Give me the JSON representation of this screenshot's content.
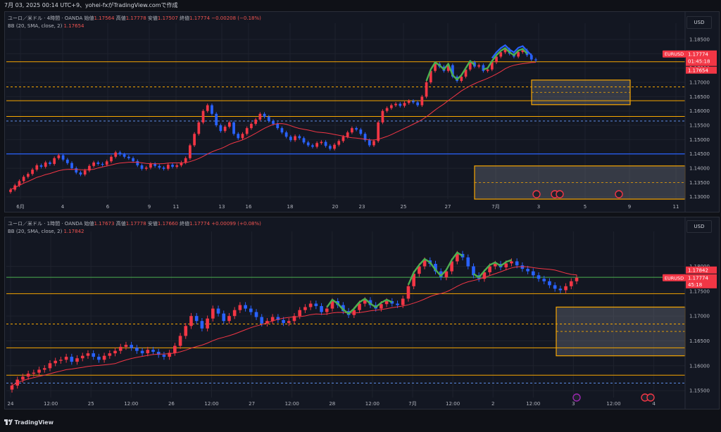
{
  "topbar": {
    "text": "7月 03, 2025 00:14 UTC+9、yohei-fxがTradingView.comで作成"
  },
  "footer": {
    "logo_icon": "tradingview-logo-icon",
    "brand": "TradingView"
  },
  "panel1": {
    "header": {
      "symbol": "ユーロ／米ドル · 4時間 · OANDA",
      "o_label": "始値",
      "o": "1.17564",
      "h_label": "高値",
      "h": "1.17778",
      "l_label": "安値",
      "l": "1.17507",
      "c_label": "終値",
      "c": "1.17774",
      "chg": "−0.00208 (−0.18%)"
    },
    "bb": {
      "label": "BB (20, SMA, close, 2)",
      "value": "1.17654"
    },
    "currency": "USD",
    "price_tag": {
      "symbol": "EURUSD",
      "price": "1.17774",
      "timer": "01:45:18",
      "bb_price": "1.17654"
    }
  },
  "panel2": {
    "header": {
      "symbol": "ユーロ／米ドル · 1時間 · OANDA",
      "o_label": "始値",
      "o": "1.17673",
      "h_label": "高値",
      "h": "1.17778",
      "l_label": "安値",
      "l": "1.17660",
      "c_label": "終値",
      "c": "1.17774",
      "chg": "+0.00099 (+0.08%)"
    },
    "bb": {
      "label": "BB (20, SMA, close, 2)",
      "value": "1.17842"
    },
    "currency": "USD",
    "price_tag": {
      "symbol": "EURUSD",
      "bb_price": "1.17842",
      "price": "1.17774",
      "timer": "45:18"
    }
  },
  "chart_data": [
    {
      "type": "candlestick",
      "title": "ユーロ／米ドル · 4時間 · OANDA",
      "x_tick_labels": [
        "6月",
        "4",
        "6",
        "9",
        "11",
        "13",
        "16",
        "18",
        "20",
        "23",
        "25",
        "27",
        "7月",
        "3",
        "5",
        "9",
        "11"
      ],
      "y_tick_labels": [
        "1.18500",
        "1.18000",
        "1.17500",
        "1.17000",
        "1.16500",
        "1.16000",
        "1.15500",
        "1.15000",
        "1.14500",
        "1.14000",
        "1.13500",
        "1.13000"
      ],
      "ylim": [
        1.1292,
        1.1882
      ],
      "closes": [
        1.1325,
        1.134,
        1.1355,
        1.137,
        1.138,
        1.1395,
        1.141,
        1.1405,
        1.142,
        1.1415,
        1.1435,
        1.1445,
        1.143,
        1.1418,
        1.14,
        1.1385,
        1.1378,
        1.1392,
        1.1408,
        1.142,
        1.1415,
        1.1412,
        1.1424,
        1.144,
        1.1455,
        1.1448,
        1.144,
        1.1435,
        1.1425,
        1.141,
        1.1398,
        1.1402,
        1.1415,
        1.1408,
        1.1402,
        1.1398,
        1.1412,
        1.1405,
        1.141,
        1.142,
        1.1435,
        1.148,
        1.152,
        1.156,
        1.16,
        1.162,
        1.159,
        1.155,
        1.153,
        1.1545,
        1.156,
        1.152,
        1.1505,
        1.152,
        1.154,
        1.1555,
        1.157,
        1.159,
        1.158,
        1.1565,
        1.1555,
        1.154,
        1.1525,
        1.151,
        1.1498,
        1.1512,
        1.1505,
        1.149,
        1.148,
        1.1475,
        1.1488,
        1.1492,
        1.1478,
        1.1468,
        1.1482,
        1.1495,
        1.151,
        1.1525,
        1.154,
        1.1535,
        1.152,
        1.1498,
        1.148,
        1.1495,
        1.156,
        1.16,
        1.161,
        1.162,
        1.1625,
        1.1618,
        1.1628,
        1.1635,
        1.163,
        1.162,
        1.165,
        1.17,
        1.174,
        1.1765,
        1.1755,
        1.174,
        1.176,
        1.172,
        1.1705,
        1.172,
        1.1745,
        1.177,
        1.1755,
        1.176,
        1.174,
        1.1745,
        1.177,
        1.179,
        1.1805,
        1.1815,
        1.18,
        1.179,
        1.1806,
        1.1812,
        1.1795,
        1.178,
        1.1777
      ],
      "bb_basis_value": "1.17654",
      "horizontal_levels": [
        1.1772,
        1.1684,
        1.1636,
        1.1581,
        1.1565,
        1.145
      ],
      "zones": [
        {
          "from": 1.1622,
          "to": 1.1708
        },
        {
          "from": 1.1292,
          "to": 1.1408
        }
      ],
      "event_icons": [
        "flash-event-icon",
        "us-flag-event-icon",
        "us-flag-event-icon",
        "globe-event-icon"
      ]
    },
    {
      "type": "candlestick",
      "title": "ユーロ／米ドル · 1時間 · OANDA",
      "x_tick_labels": [
        "24",
        "12:00",
        "25",
        "12:00",
        "26",
        "12:00",
        "27",
        "12:00",
        "28",
        "12:00",
        "7月",
        "12:00",
        "2",
        "12:00",
        "3",
        "12:00",
        "4"
      ],
      "y_tick_labels": [
        "1.18000",
        "1.17500",
        "1.17000",
        "1.16500",
        "1.16000",
        "1.15500"
      ],
      "ylim": [
        1.1536,
        1.1856
      ],
      "closes": [
        1.156,
        1.1572,
        1.1578,
        1.1584,
        1.1586,
        1.1592,
        1.1595,
        1.1605,
        1.161,
        1.1612,
        1.1618,
        1.1608,
        1.1615,
        1.162,
        1.1625,
        1.1618,
        1.1612,
        1.162,
        1.1625,
        1.163,
        1.1638,
        1.1642,
        1.1636,
        1.163,
        1.1625,
        1.1632,
        1.1628,
        1.1622,
        1.1618,
        1.1626,
        1.164,
        1.166,
        1.168,
        1.17,
        1.169,
        1.1675,
        1.1695,
        1.1715,
        1.1705,
        1.169,
        1.17,
        1.1712,
        1.1722,
        1.1715,
        1.1708,
        1.1698,
        1.1685,
        1.169,
        1.1698,
        1.1692,
        1.1686,
        1.169,
        1.17,
        1.1712,
        1.1718,
        1.1725,
        1.172,
        1.1708,
        1.1715,
        1.173,
        1.1722,
        1.171,
        1.1702,
        1.1712,
        1.1725,
        1.1732,
        1.1722,
        1.1715,
        1.1724,
        1.173,
        1.1725,
        1.1722,
        1.1735,
        1.176,
        1.1785,
        1.18,
        1.1812,
        1.1805,
        1.179,
        1.1778,
        1.179,
        1.181,
        1.1825,
        1.1818,
        1.18,
        1.1782,
        1.1775,
        1.1788,
        1.18,
        1.1805,
        1.1798,
        1.1806,
        1.181,
        1.1802,
        1.1795,
        1.179,
        1.1782,
        1.1775,
        1.177,
        1.1762,
        1.1755,
        1.1752,
        1.176,
        1.177,
        1.1777
      ],
      "bb_basis_value": "1.17842",
      "horizontal_levels": [
        1.1778,
        1.1745,
        1.1684,
        1.1636,
        1.1581,
        1.1565
      ],
      "zones": [
        {
          "from": 1.162,
          "to": 1.1718
        }
      ],
      "event_icons": [
        "flash-event-icon",
        "us-flag-event-icon",
        "us-flag-event-icon"
      ]
    }
  ]
}
